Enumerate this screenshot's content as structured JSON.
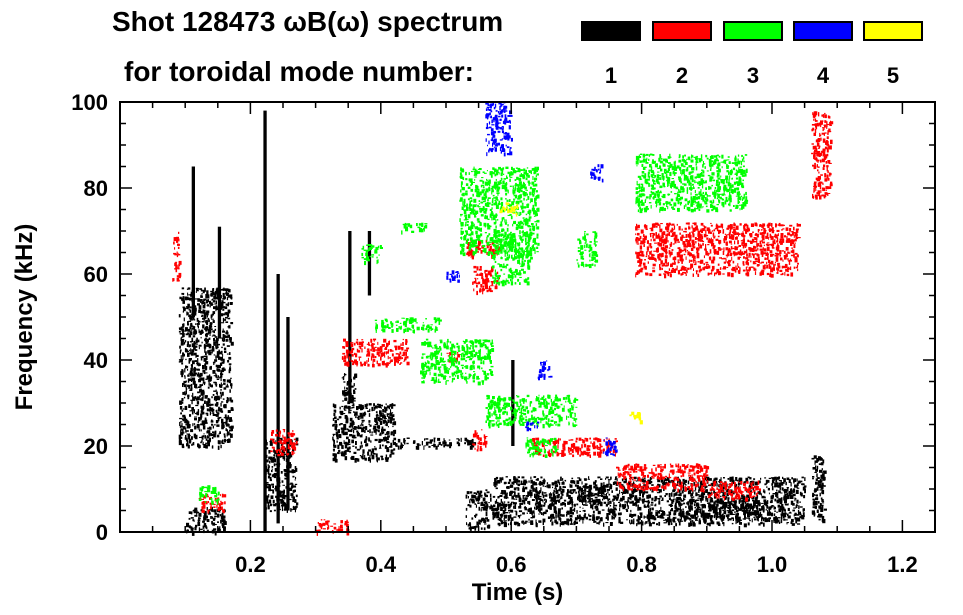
{
  "title_line1": "Shot 128473 ωB(ω) spectrum",
  "title_line2": "for toroidal mode number:",
  "legend": [
    {
      "label": "1",
      "color": "#000000"
    },
    {
      "label": "2",
      "color": "#ff0000"
    },
    {
      "label": "3",
      "color": "#00ff00"
    },
    {
      "label": "4",
      "color": "#0000ff"
    },
    {
      "label": "5",
      "color": "#ffff00"
    }
  ],
  "chart_data": {
    "type": "scatter",
    "title": "Shot 128473 ωB(ω) spectrum",
    "xlabel": "Time (s)",
    "ylabel": "Frequency (kHz)",
    "xlim": [
      0.0,
      1.25
    ],
    "ylim": [
      0,
      100
    ],
    "xticks": [
      0.2,
      0.4,
      0.6,
      0.8,
      1.0,
      1.2
    ],
    "xtick_labels": [
      "0.2",
      "0.4",
      "0.6",
      "0.8",
      "1.0",
      "1.2"
    ],
    "yticks": [
      0,
      20,
      40,
      60,
      80,
      100
    ],
    "ytick_labels": [
      "0",
      "20",
      "40",
      "60",
      "80",
      "100"
    ],
    "series": [
      {
        "name": "n=1",
        "color": "#000000",
        "blobs": [
          [
            0.09,
            0.17,
            20,
            57
          ],
          [
            0.1,
            0.16,
            0,
            6
          ],
          [
            0.22,
            0.27,
            5,
            22
          ],
          [
            0.325,
            0.42,
            17,
            30
          ],
          [
            0.34,
            0.36,
            28,
            37
          ],
          [
            0.42,
            0.55,
            20,
            22
          ],
          [
            0.53,
            0.57,
            1,
            10
          ],
          [
            0.57,
            1.05,
            2,
            13
          ],
          [
            0.7,
            0.75,
            7,
            11
          ],
          [
            0.85,
            1.0,
            3,
            8
          ],
          [
            1.06,
            1.08,
            3,
            18
          ]
        ],
        "streaks": [
          [
            0.22,
            0.225,
            0,
            98
          ],
          [
            0.24,
            0.245,
            2,
            60
          ],
          [
            0.255,
            0.26,
            5,
            50
          ],
          [
            0.15,
            0.155,
            45,
            71
          ],
          [
            0.11,
            0.115,
            50,
            85
          ],
          [
            0.35,
            0.355,
            30,
            70
          ],
          [
            0.38,
            0.385,
            55,
            70
          ],
          [
            0.6,
            0.605,
            20,
            40
          ]
        ]
      },
      {
        "name": "n=2",
        "color": "#ff0000",
        "blobs": [
          [
            0.79,
            1.04,
            60,
            72
          ],
          [
            0.53,
            0.58,
            64,
            68
          ],
          [
            0.54,
            0.58,
            56,
            62
          ],
          [
            0.34,
            0.44,
            39,
            45
          ],
          [
            0.5,
            0.52,
            40,
            42
          ],
          [
            0.63,
            0.76,
            18,
            22
          ],
          [
            0.76,
            0.9,
            10,
            16
          ],
          [
            0.9,
            0.98,
            8,
            12
          ],
          [
            0.54,
            0.56,
            19,
            24
          ],
          [
            0.23,
            0.27,
            18,
            24
          ],
          [
            1.06,
            1.09,
            78,
            98
          ],
          [
            0.12,
            0.16,
            5,
            9
          ],
          [
            0.3,
            0.35,
            0,
            3
          ],
          [
            0.08,
            0.09,
            58,
            70
          ]
        ],
        "streaks": []
      },
      {
        "name": "n=3",
        "color": "#00ff00",
        "blobs": [
          [
            0.52,
            0.64,
            65,
            85
          ],
          [
            0.57,
            0.63,
            58,
            70
          ],
          [
            0.7,
            0.73,
            62,
            70
          ],
          [
            0.79,
            0.96,
            75,
            88
          ],
          [
            0.39,
            0.49,
            47,
            50
          ],
          [
            0.46,
            0.57,
            35,
            45
          ],
          [
            0.56,
            0.7,
            25,
            32
          ],
          [
            0.62,
            0.67,
            18,
            22
          ],
          [
            0.43,
            0.47,
            70,
            72
          ],
          [
            0.37,
            0.4,
            63,
            67
          ],
          [
            0.12,
            0.15,
            7,
            11
          ]
        ],
        "streaks": []
      },
      {
        "name": "n=4",
        "color": "#0000ff",
        "blobs": [
          [
            0.56,
            0.6,
            88,
            100
          ],
          [
            0.72,
            0.74,
            82,
            86
          ],
          [
            0.5,
            0.52,
            58,
            61
          ],
          [
            0.64,
            0.66,
            36,
            40
          ],
          [
            0.62,
            0.64,
            24,
            26
          ],
          [
            0.74,
            0.76,
            18,
            22
          ]
        ],
        "streaks": []
      },
      {
        "name": "n=5",
        "color": "#ffff00",
        "blobs": [
          [
            0.58,
            0.61,
            74,
            77
          ],
          [
            0.78,
            0.8,
            26,
            28
          ]
        ],
        "streaks": []
      }
    ]
  }
}
